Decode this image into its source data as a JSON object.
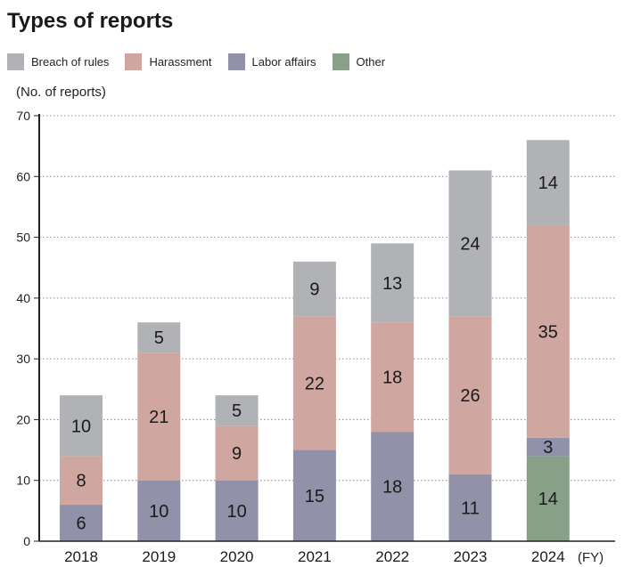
{
  "chart_data": {
    "type": "bar",
    "stacked": true,
    "title": "Types of reports",
    "ylabel": "(No. of reports)",
    "xlabel": "(FY)",
    "ylim": [
      0,
      70
    ],
    "yticks": [
      0,
      10,
      20,
      30,
      40,
      50,
      60,
      70
    ],
    "grid": "horizontal dotted",
    "legend_position": "top-left",
    "categories": [
      "2018",
      "2019",
      "2020",
      "2021",
      "2022",
      "2023",
      "2024"
    ],
    "series": [
      {
        "name": "Other",
        "color": "#88a088",
        "values": [
          0,
          0,
          0,
          0,
          0,
          0,
          14
        ]
      },
      {
        "name": "Labor affairs",
        "color": "#9192aa",
        "values": [
          6,
          10,
          10,
          15,
          18,
          11,
          3
        ]
      },
      {
        "name": "Harassment",
        "color": "#cfa6a0",
        "values": [
          8,
          21,
          9,
          22,
          18,
          26,
          35
        ]
      },
      {
        "name": "Breach of rules",
        "color": "#b1b2b6",
        "values": [
          10,
          5,
          5,
          9,
          13,
          24,
          14
        ]
      }
    ],
    "legend_order": [
      "Breach of rules",
      "Harassment",
      "Labor affairs",
      "Other"
    ]
  }
}
